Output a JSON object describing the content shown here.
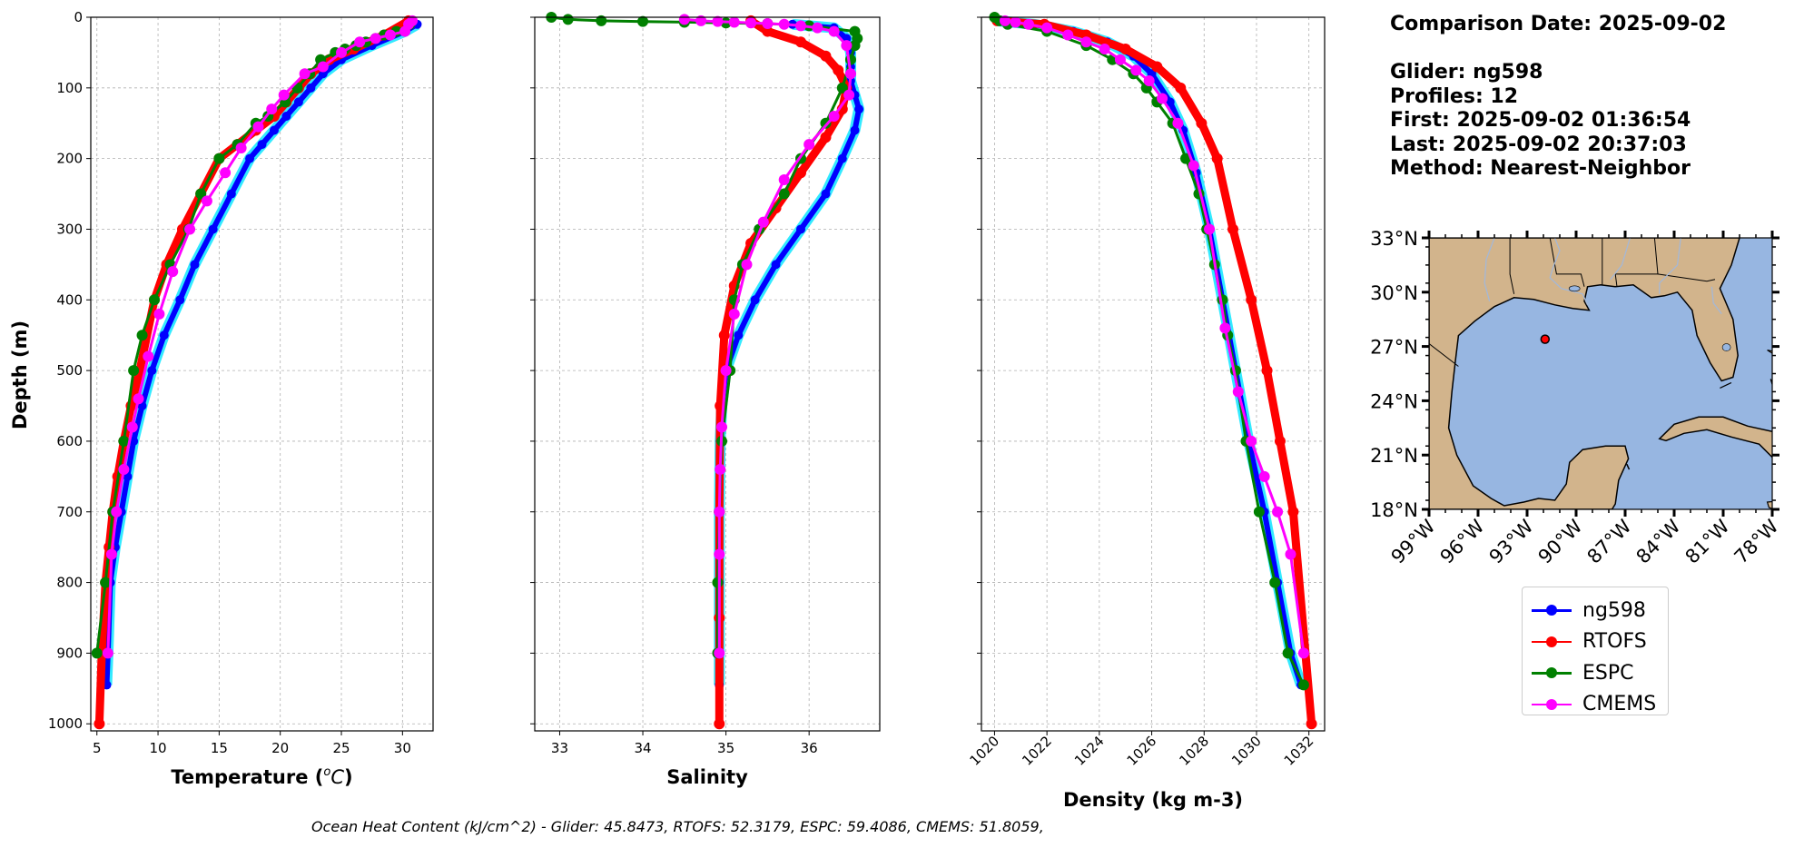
{
  "info": {
    "comparison": "Comparison Date: 2025-09-02",
    "glider": "Glider: ng598",
    "profiles": "Profiles: 12",
    "first": "First: 2025-09-02 01:36:54",
    "last": "Last: 2025-09-02 20:37:03",
    "method": "Method: Nearest-Neighbor"
  },
  "footer": "Ocean Heat Content (kJ/cm^2) - Glider: 45.8473,  RTOFS: 52.3179,  ESPC: 59.4086,  CMEMS: 51.8059,",
  "legend": [
    {
      "label": "ng598",
      "color": "#0000ff"
    },
    {
      "label": "RTOFS",
      "color": "#ff0000"
    },
    {
      "label": "ESPC",
      "color": "#008000"
    },
    {
      "label": "CMEMS",
      "color": "#ff00ff"
    }
  ],
  "chart_data": [
    {
      "type": "line",
      "xlabel": "Temperature ($^oC$)",
      "ylabel": "Depth (m)",
      "xlim": [
        4.5,
        32.5
      ],
      "ylim": [
        1010,
        0
      ],
      "xticks": [
        5,
        10,
        15,
        20,
        25,
        30
      ],
      "yticks": [
        0,
        100,
        200,
        300,
        400,
        500,
        600,
        700,
        800,
        900,
        1000
      ],
      "grid": true,
      "series": [
        {
          "name": "ng598",
          "color": "#0000ff",
          "width": 6,
          "marker": 5,
          "x": [
            31.2,
            30.2,
            27.5,
            25.0,
            23.5,
            22.5,
            21.5,
            20.5,
            19.5,
            18.5,
            17.5,
            16.0,
            14.5,
            13.0,
            11.8,
            10.5,
            9.5,
            8.7,
            8.0,
            7.5,
            7.0,
            6.5,
            6.1,
            5.9,
            5.8
          ],
          "y": [
            10,
            20,
            40,
            60,
            80,
            100,
            120,
            140,
            160,
            180,
            200,
            250,
            300,
            350,
            400,
            450,
            500,
            550,
            600,
            650,
            700,
            750,
            800,
            900,
            945
          ]
        },
        {
          "name": "RTOFS",
          "color": "#ff0000",
          "width": 9,
          "marker": 6,
          "x": [
            30.5,
            28.5,
            26.0,
            24.0,
            22.5,
            21.5,
            20.5,
            19.5,
            18.0,
            16.5,
            15.0,
            13.5,
            12.0,
            10.7,
            9.7,
            8.5,
            7.8,
            7.2,
            6.7,
            6.3,
            6.0,
            5.7,
            5.4,
            5.2
          ],
          "y": [
            5,
            25,
            45,
            60,
            80,
            100,
            120,
            140,
            160,
            180,
            200,
            250,
            300,
            350,
            400,
            500,
            550,
            600,
            650,
            700,
            750,
            800,
            900,
            1000
          ]
        },
        {
          "name": "ESPC",
          "color": "#008000",
          "width": 3,
          "marker": 6,
          "x": [
            30.6,
            29.5,
            28.5,
            27.8,
            27.0,
            26.2,
            25.3,
            24.5,
            23.3,
            22.4,
            21.4,
            20.4,
            19.0,
            18.0,
            16.5,
            15.0,
            13.5,
            12.5,
            11.0,
            9.7,
            8.7,
            8.0,
            7.2,
            6.3,
            5.7,
            5.0
          ],
          "y": [
            10,
            20,
            25,
            30,
            35,
            40,
            45,
            50,
            60,
            80,
            100,
            120,
            140,
            150,
            180,
            200,
            250,
            300,
            350,
            400,
            450,
            500,
            600,
            700,
            800,
            900
          ]
        },
        {
          "name": "CMEMS",
          "color": "#ff00ff",
          "width": 3,
          "marker": 6,
          "x": [
            30.8,
            30.5,
            30.2,
            29.0,
            27.8,
            26.5,
            25.0,
            23.5,
            22.0,
            20.3,
            19.3,
            18.2,
            16.8,
            15.5,
            14.0,
            12.6,
            11.2,
            10.1,
            9.2,
            8.4,
            7.9,
            7.2,
            6.6,
            6.2,
            5.9
          ],
          "y": [
            5,
            10,
            20,
            25,
            30,
            35,
            50,
            70,
            80,
            110,
            130,
            155,
            185,
            220,
            260,
            300,
            360,
            420,
            480,
            540,
            580,
            640,
            700,
            760,
            900
          ]
        }
      ]
    },
    {
      "type": "line",
      "xlabel": "Salinity",
      "ylabel": "",
      "xlim": [
        32.7,
        36.85
      ],
      "ylim": [
        1010,
        0
      ],
      "xticks": [
        33,
        34,
        35,
        36
      ],
      "yticks": [
        0,
        100,
        200,
        300,
        400,
        500,
        600,
        700,
        800,
        900,
        1000
      ],
      "grid": true,
      "series": [
        {
          "name": "ng598",
          "color": "#0000ff",
          "width": 6,
          "marker": 5,
          "x": [
            35.8,
            36.3,
            36.45,
            36.5,
            36.5,
            36.5,
            36.55,
            36.6,
            36.55,
            36.4,
            36.2,
            35.9,
            35.6,
            35.35,
            35.15,
            35.0,
            34.95,
            34.93,
            34.92,
            34.92,
            34.92,
            34.92
          ],
          "y": [
            10,
            15,
            30,
            50,
            70,
            90,
            110,
            130,
            160,
            200,
            250,
            300,
            350,
            400,
            450,
            500,
            550,
            600,
            700,
            800,
            900,
            945
          ]
        },
        {
          "name": "RTOFS",
          "color": "#ff0000",
          "width": 9,
          "marker": 6,
          "x": [
            35.3,
            35.5,
            35.9,
            36.2,
            36.35,
            36.45,
            36.4,
            36.2,
            35.9,
            35.6,
            35.3,
            35.1,
            34.98,
            34.93,
            34.92,
            34.92,
            34.92
          ],
          "y": [
            5,
            20,
            35,
            55,
            75,
            100,
            130,
            170,
            220,
            270,
            320,
            380,
            450,
            550,
            700,
            850,
            1000
          ]
        },
        {
          "name": "ESPC",
          "color": "#008000",
          "width": 3,
          "marker": 6,
          "x": [
            32.9,
            33.1,
            33.5,
            34.0,
            34.5,
            35.0,
            35.5,
            36.0,
            36.55,
            36.58,
            36.55,
            36.5,
            36.4,
            36.2,
            35.9,
            35.7,
            35.4,
            35.2,
            35.1,
            35.05,
            34.95,
            34.92,
            34.9,
            34.9
          ],
          "y": [
            0,
            3,
            5,
            6,
            7,
            8,
            9,
            12,
            20,
            30,
            40,
            60,
            100,
            150,
            200,
            250,
            300,
            350,
            400,
            500,
            600,
            700,
            800,
            900
          ]
        },
        {
          "name": "CMEMS",
          "color": "#ff00ff",
          "width": 3,
          "marker": 6,
          "x": [
            34.5,
            34.7,
            34.9,
            35.1,
            35.3,
            35.5,
            35.7,
            35.9,
            36.1,
            36.3,
            36.45,
            36.5,
            36.48,
            36.3,
            36.0,
            35.7,
            35.45,
            35.25,
            35.1,
            35.0,
            34.95,
            34.93,
            34.92,
            34.92,
            34.92
          ],
          "y": [
            3,
            5,
            6,
            7,
            8,
            9,
            10,
            12,
            15,
            20,
            40,
            80,
            110,
            140,
            180,
            230,
            290,
            350,
            420,
            500,
            580,
            640,
            700,
            760,
            900
          ]
        }
      ]
    },
    {
      "type": "line",
      "xlabel": "Density (kg m-3)",
      "ylabel": "",
      "xlim": [
        1019.5,
        1032.6
      ],
      "ylim": [
        1010,
        0
      ],
      "xticks": [
        1020,
        1022,
        1024,
        1026,
        1028,
        1030,
        1032
      ],
      "yticks": [
        0,
        100,
        200,
        300,
        400,
        500,
        600,
        700,
        800,
        900,
        1000
      ],
      "grid": true,
      "series": [
        {
          "name": "ng598",
          "color": "#0000ff",
          "width": 6,
          "marker": 5,
          "x": [
            1020.1,
            1021.5,
            1023.0,
            1024.3,
            1025.3,
            1026.0,
            1026.7,
            1027.2,
            1027.7,
            1028.2,
            1028.7,
            1029.2,
            1029.7,
            1030.3,
            1030.8,
            1031.3,
            1031.7
          ],
          "y": [
            5,
            10,
            20,
            35,
            55,
            80,
            120,
            160,
            220,
            300,
            400,
            500,
            600,
            700,
            800,
            900,
            945
          ]
        },
        {
          "name": "RTOFS",
          "color": "#ff0000",
          "width": 9,
          "marker": 6,
          "x": [
            1020.1,
            1021.9,
            1023.5,
            1025.0,
            1026.2,
            1027.1,
            1027.9,
            1028.5,
            1029.1,
            1029.8,
            1030.4,
            1030.9,
            1031.4,
            1032.1
          ],
          "y": [
            5,
            10,
            25,
            45,
            70,
            100,
            150,
            200,
            300,
            400,
            500,
            600,
            700,
            1000
          ]
        },
        {
          "name": "ESPC",
          "color": "#008000",
          "width": 3,
          "marker": 6,
          "x": [
            1020.0,
            1020.2,
            1020.5,
            1022.0,
            1023.5,
            1024.5,
            1025.3,
            1025.8,
            1026.2,
            1026.8,
            1027.3,
            1027.8,
            1028.1,
            1028.4,
            1028.7,
            1028.9,
            1029.2,
            1029.6,
            1030.1,
            1030.7,
            1031.2,
            1031.8
          ],
          "y": [
            0,
            5,
            10,
            20,
            40,
            60,
            80,
            100,
            120,
            150,
            200,
            250,
            300,
            350,
            400,
            450,
            500,
            600,
            700,
            800,
            900,
            945
          ]
        },
        {
          "name": "CMEMS",
          "color": "#ff00ff",
          "width": 3,
          "marker": 6,
          "x": [
            1020.4,
            1020.8,
            1021.3,
            1022.0,
            1022.8,
            1023.5,
            1024.2,
            1024.8,
            1025.4,
            1025.9,
            1026.4,
            1027.0,
            1027.6,
            1028.2,
            1028.8,
            1029.3,
            1029.8,
            1030.3,
            1030.8,
            1031.3,
            1031.8
          ],
          "y": [
            5,
            7,
            10,
            15,
            25,
            35,
            45,
            60,
            75,
            90,
            115,
            150,
            210,
            300,
            440,
            530,
            600,
            650,
            700,
            760,
            900
          ]
        }
      ]
    }
  ],
  "map": {
    "lat_labels": [
      "33°N",
      "30°N",
      "27°N",
      "24°N",
      "21°N",
      "18°N"
    ],
    "lon_labels": [
      "99°W",
      "96°W",
      "93°W",
      "90°W",
      "87°W",
      "84°W",
      "81°W",
      "78°W"
    ],
    "ocean_color": "#97b6e1",
    "land_color": "#d2b48c",
    "marker_lon": -91.9,
    "marker_lat": 27.4
  }
}
